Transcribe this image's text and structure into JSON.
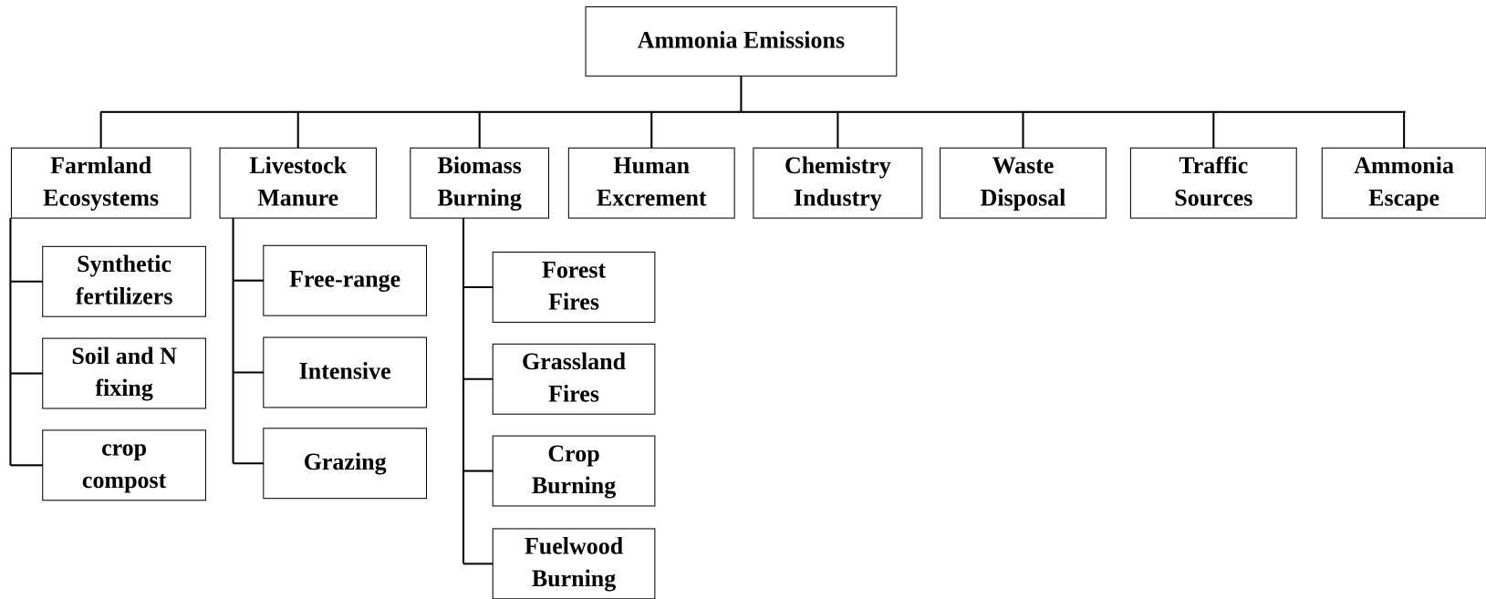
{
  "root": {
    "label": [
      "Ammonia Emissions"
    ]
  },
  "categories": [
    {
      "label": [
        "Farmland",
        "Ecosystems"
      ],
      "children": [
        {
          "label": [
            "Synthetic",
            "fertilizers"
          ]
        },
        {
          "label": [
            "Soil and N",
            "fixing"
          ]
        },
        {
          "label": [
            "crop",
            "compost"
          ]
        }
      ]
    },
    {
      "label": [
        "Livestock",
        "Manure"
      ],
      "children": [
        {
          "label": [
            "Free-range"
          ]
        },
        {
          "label": [
            "Intensive"
          ]
        },
        {
          "label": [
            "Grazing"
          ]
        }
      ]
    },
    {
      "label": [
        "Biomass",
        "Burning"
      ],
      "children": [
        {
          "label": [
            "Forest",
            "Fires"
          ]
        },
        {
          "label": [
            "Grassland",
            "Fires"
          ]
        },
        {
          "label": [
            "Crop",
            "Burning"
          ]
        },
        {
          "label": [
            "Fuelwood",
            "Burning"
          ]
        }
      ]
    },
    {
      "label": [
        "Human",
        "Excrement"
      ],
      "children": []
    },
    {
      "label": [
        "Chemistry",
        "Industry"
      ],
      "children": []
    },
    {
      "label": [
        "Waste",
        "Disposal"
      ],
      "children": []
    },
    {
      "label": [
        "Traffic",
        "Sources"
      ],
      "children": []
    },
    {
      "label": [
        "Ammonia",
        "Escape"
      ],
      "children": []
    }
  ]
}
